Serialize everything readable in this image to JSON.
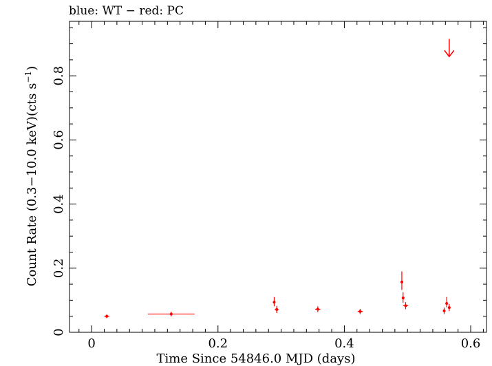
{
  "chart_data": {
    "type": "scatter",
    "title": "blue: WT − red: PC",
    "xlabel": "Time Since 54846.0 MJD (days)",
    "ylabel_main": "Count Rate (0.3−10.0 keV)(cts s",
    "ylabel_sup": "−1",
    "ylabel_end": ")",
    "xlim": [
      -0.035,
      0.625
    ],
    "ylim": [
      0,
      0.97
    ],
    "x_ticks": [
      0,
      0.2,
      0.4,
      0.6
    ],
    "x_tick_labels": [
      "0",
      "0.2",
      "0.4",
      "0.6"
    ],
    "y_ticks": [
      0,
      0.2,
      0.4,
      0.6,
      0.8
    ],
    "y_tick_labels": [
      "0",
      "0.2",
      "0.4",
      "0.6",
      "0.8"
    ],
    "grid": false,
    "series_color": "#ff0000",
    "series": [
      {
        "points": [
          {
            "x": 0.024,
            "y": 0.05,
            "xerr": 0.004,
            "yerr_lo": 0.006,
            "yerr_hi": 0.006
          },
          {
            "x": 0.126,
            "y": 0.057,
            "xerr": 0.037,
            "yerr_lo": 0.007,
            "yerr_hi": 0.007
          },
          {
            "x": 0.289,
            "y": 0.094,
            "xerr": 0.002,
            "yerr_lo": 0.013,
            "yerr_hi": 0.016
          },
          {
            "x": 0.293,
            "y": 0.071,
            "xerr": 0.003,
            "yerr_lo": 0.011,
            "yerr_hi": 0.011
          },
          {
            "x": 0.358,
            "y": 0.072,
            "xerr": 0.004,
            "yerr_lo": 0.009,
            "yerr_hi": 0.009
          },
          {
            "x": 0.425,
            "y": 0.065,
            "xerr": 0.004,
            "yerr_lo": 0.008,
            "yerr_hi": 0.008
          },
          {
            "x": 0.491,
            "y": 0.157,
            "xerr": 0.001,
            "yerr_lo": 0.025,
            "yerr_hi": 0.033
          },
          {
            "x": 0.493,
            "y": 0.107,
            "xerr": 0.001,
            "yerr_lo": 0.015,
            "yerr_hi": 0.018
          },
          {
            "x": 0.497,
            "y": 0.083,
            "xerr": 0.004,
            "yerr_lo": 0.011,
            "yerr_hi": 0.011
          },
          {
            "x": 0.558,
            "y": 0.067,
            "xerr": 0.001,
            "yerr_lo": 0.01,
            "yerr_hi": 0.01
          },
          {
            "x": 0.562,
            "y": 0.09,
            "xerr": 0.002,
            "yerr_lo": 0.012,
            "yerr_hi": 0.02
          },
          {
            "x": 0.566,
            "y": 0.077,
            "xerr": 0.002,
            "yerr_lo": 0.011,
            "yerr_hi": 0.011
          }
        ]
      }
    ],
    "upper_limits": [
      {
        "x": 0.566,
        "y": 0.915,
        "y_to": 0.86
      }
    ]
  }
}
